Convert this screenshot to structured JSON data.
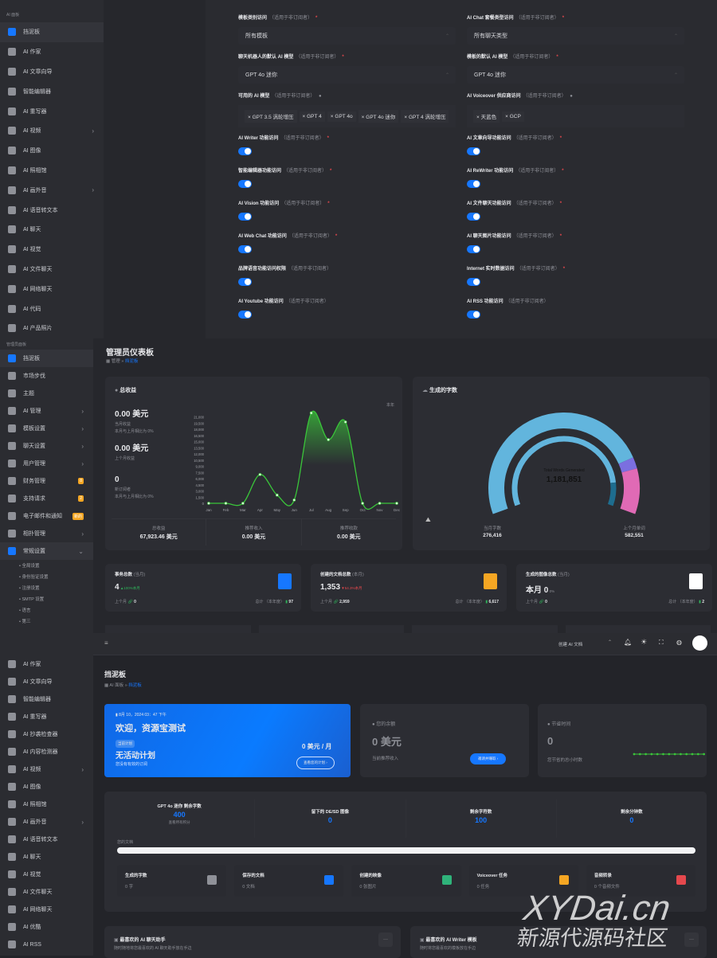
{
  "panel1": {
    "sidebar": {
      "section": "AI 面板",
      "items": [
        {
          "label": "挡泥板",
          "icon": "dashboard-icon",
          "active": true
        },
        {
          "label": "AI 作家",
          "icon": "ai-writer-icon"
        },
        {
          "label": "AI 文章向导",
          "icon": "sparkle-icon"
        },
        {
          "label": "智能编辑器",
          "icon": "feather-icon"
        },
        {
          "label": "AI 重写器",
          "icon": "pen-icon"
        },
        {
          "label": "AI 视频",
          "icon": "video-icon",
          "chevron": true
        },
        {
          "label": "AI 图像",
          "icon": "image-scan-icon"
        },
        {
          "label": "AI 照相馆",
          "icon": "photo-studio-icon"
        },
        {
          "label": "AI 画外音",
          "icon": "waveform-icon",
          "chevron": true
        },
        {
          "label": "AI 语音转文本",
          "icon": "speech-to-text-icon"
        },
        {
          "label": "AI 聊天",
          "icon": "chat-icon"
        },
        {
          "label": "AI 视觉",
          "icon": "vision-icon"
        },
        {
          "label": "AI 文件聊天",
          "icon": "file-chat-icon"
        },
        {
          "label": "AI 网络聊天",
          "icon": "globe-icon"
        },
        {
          "label": "AI 代码",
          "icon": "code-icon"
        },
        {
          "label": "AI 产品照片",
          "icon": "camera-icon"
        }
      ]
    },
    "form": {
      "hint": "（适用于非订阅者）",
      "left": [
        {
          "label": "模板类别访问",
          "type": "select",
          "value": "所有模板",
          "req": true
        },
        {
          "label": "聊天机器人的默认 AI 模型",
          "type": "select",
          "value": "GPT 4o 迷你",
          "req": true
        },
        {
          "label": "可用的 AI 模型",
          "type": "tags",
          "tags": [
            "GPT 3.5 涡轮增压",
            "GPT 4",
            "GPT 4o",
            "GPT 4o 迷你",
            "GPT 4 涡轮增压"
          ],
          "info": true
        },
        {
          "label": "AI Writer 功能访问",
          "type": "toggle",
          "on": true,
          "req": true
        },
        {
          "label": "智能编辑器功能访问",
          "type": "toggle",
          "on": true,
          "req": true
        },
        {
          "label": "AI Vision 功能访问",
          "type": "toggle",
          "on": true,
          "req": true
        },
        {
          "label": "AI Web Chat 功能访问",
          "type": "toggle",
          "on": true,
          "req": true
        },
        {
          "label": "品牌语音功能访问权限",
          "type": "toggle",
          "on": true
        },
        {
          "label": "AI Youtube 功能访问",
          "type": "toggle",
          "on": true
        }
      ],
      "right": [
        {
          "label": "AI Chat 套餐类型访问",
          "type": "select",
          "value": "所有聊天类型",
          "req": true
        },
        {
          "label": "模板的默认 AI 模型",
          "type": "select",
          "value": "GPT 4o 迷你",
          "req": true
        },
        {
          "label": "AI Voiceover 供应商访问",
          "type": "tags",
          "tags": [
            "天蓝色",
            "GCP"
          ],
          "info": true
        },
        {
          "label": "AI 文章向导功能访问",
          "type": "toggle",
          "on": true,
          "req": true
        },
        {
          "label": "AI ReWriter 功能访问",
          "type": "toggle",
          "on": true,
          "req": true
        },
        {
          "label": "AI 文件聊天功能访问",
          "type": "toggle",
          "on": true,
          "req": true
        },
        {
          "label": "AI 聊天图片功能访问",
          "type": "toggle",
          "on": true,
          "req": true
        },
        {
          "label": "Internet 实时数据访问",
          "type": "toggle",
          "on": true,
          "req": true
        },
        {
          "label": "AI RSS 功能访问",
          "type": "toggle",
          "on": true
        }
      ]
    }
  },
  "panel2": {
    "sidebar": {
      "section": "管理员面板",
      "items": [
        {
          "label": "挡泥板",
          "icon": "dashboard-icon",
          "active": true
        },
        {
          "label": "市场步伐",
          "icon": "marketplace-icon"
        },
        {
          "label": "主题",
          "icon": "palette-icon"
        },
        {
          "label": "AI 管理",
          "icon": "ai-manage-icon",
          "chevron": true
        },
        {
          "label": "模板设置",
          "icon": "feather-icon",
          "chevron": true
        },
        {
          "label": "聊天设置",
          "icon": "chat-settings-icon",
          "chevron": true
        },
        {
          "label": "用户管理",
          "icon": "user-icon",
          "chevron": true
        },
        {
          "label": "财务管理",
          "icon": "money-bag-icon",
          "badge": "8"
        },
        {
          "label": "支持请求",
          "icon": "support-icon",
          "badge": "2"
        },
        {
          "label": "电子邮件和通知",
          "icon": "mail-icon",
          "badge": "新的"
        },
        {
          "label": "相扑管理",
          "icon": "affiliate-icon",
          "chevron": true
        },
        {
          "label": "常规设置",
          "icon": "settings-icon",
          "active": true,
          "expanded": true
        }
      ],
      "subitems": [
        "全局设置",
        "身份验证设置",
        "注册设置",
        "SMTP 设置",
        "语言",
        "第三"
      ]
    },
    "title": "管理员仪表板",
    "breadcrumb": [
      "管理",
      "挡泥板"
    ],
    "revenue": {
      "title": "总收益",
      "stats": [
        {
          "value": "0.00 美元",
          "label": "当月收益",
          "sub": "本月与上月相比为 0%"
        },
        {
          "value": "0.00 美元",
          "label": "上个月收益"
        },
        {
          "value": "0",
          "label": "新订阅者",
          "sub": "本月与上月相比为 0%"
        }
      ],
      "range": "本年",
      "footer": [
        {
          "label": "总收益",
          "value": "67,923.46 美元"
        },
        {
          "label": "推荐收入",
          "value": "0.00 美元"
        },
        {
          "label": "推荐收款",
          "value": "0.00 美元"
        }
      ]
    },
    "words": {
      "title": "生成的字数",
      "center_label": "Total Words Generated",
      "center_value": "1,181,851",
      "left_label": "当月字数",
      "left_value": "276,416",
      "right_label": "上个月单词",
      "right_value": "582,551"
    },
    "stat_cards": [
      {
        "title": "事务总数",
        "period": "(当月)",
        "value": "4",
        "delta": "▲100%本月",
        "delta_color": "#2fb35a",
        "prev_label": "上个月",
        "prev": "0",
        "total_label": "总计 （本年度）",
        "total": "97",
        "icon": "invoice-dollar-icon",
        "color": "#1677ff"
      },
      {
        "title": "创建的文档总数",
        "period": "(本月)",
        "value": "1,353",
        "delta": "▼54.3%本月",
        "delta_color": "#e5484d",
        "prev_label": "上个月",
        "prev": "2,959",
        "total_label": "总计 （本年度）",
        "total": "6,617",
        "icon": "folder-icon",
        "color": "#f5a623"
      },
      {
        "title": "生成的图像总数",
        "period": "(当月)",
        "value": "本月 0",
        "delta": "0%",
        "delta_color": "#8d8f96",
        "prev_label": "上个月",
        "prev": "0",
        "total_label": "总计 （本年度）",
        "total": "2",
        "icon": "image-icon",
        "color": "#ffffff"
      }
    ]
  },
  "chart_data": [
    {
      "type": "area",
      "title": "",
      "x": [
        "Jan",
        "Feb",
        "Mar",
        "Apr",
        "May",
        "Jun",
        "Jul",
        "Aug",
        "Sep",
        "Oct",
        "Nov",
        "Dec"
      ],
      "values": [
        0,
        0,
        0,
        7000,
        2000,
        800,
        22000,
        15500,
        19800,
        0,
        0,
        0
      ],
      "yticks": [
        0,
        1500,
        3000,
        4500,
        6000,
        7500,
        9000,
        10500,
        12000,
        13500,
        15000,
        16500,
        18000,
        19500,
        21000
      ],
      "ytick_labels": [
        "0",
        "1,500",
        "3,000",
        "4,500",
        "6,000",
        "7,500",
        "9,000",
        "10,500",
        "12,000",
        "13,500",
        "15,000",
        "16,500",
        "18,000",
        "19,500",
        "21,000"
      ],
      "ylim": [
        0,
        22500
      ],
      "color": "#3ac53a",
      "grid": false
    },
    {
      "type": "radial-gauge",
      "outer": [
        {
          "fraction": 0.8,
          "color": "#62b5dd"
        },
        {
          "fraction": 0.04,
          "color": "#7b6fe0"
        },
        {
          "fraction": 0.16,
          "color": "#e06ab5"
        }
      ],
      "inner": [
        {
          "fraction": 0.88,
          "color": "#62b5dd"
        },
        {
          "fraction": 0.12,
          "color": "#1e6d8f"
        }
      ]
    }
  ],
  "panel3": {
    "sidebar": {
      "items": [
        {
          "label": "AI 作家",
          "icon": "ai-writer-icon"
        },
        {
          "label": "AI 文章向导",
          "icon": "sparkle-icon"
        },
        {
          "label": "智能编辑器",
          "icon": "feather-icon"
        },
        {
          "label": "AI 重写器",
          "icon": "pen-icon"
        },
        {
          "label": "AI 抄袭检查器",
          "icon": "shield-check-icon"
        },
        {
          "label": "AI 内容检测器",
          "icon": "detector-icon"
        },
        {
          "label": "AI 视频",
          "icon": "video-icon",
          "chevron": true
        },
        {
          "label": "AI 图像",
          "icon": "image-scan-icon"
        },
        {
          "label": "AI 照相馆",
          "icon": "photo-studio-icon"
        },
        {
          "label": "AI 画外音",
          "icon": "waveform-icon",
          "chevron": true
        },
        {
          "label": "AI 语音转文本",
          "icon": "speech-to-text-icon"
        },
        {
          "label": "AI 聊天",
          "icon": "chat-icon"
        },
        {
          "label": "AI 视觉",
          "icon": "vision-icon"
        },
        {
          "label": "AI 文件聊天",
          "icon": "file-chat-icon"
        },
        {
          "label": "AI 网络聊天",
          "icon": "globe-icon"
        },
        {
          "label": "AI 优酷",
          "icon": "youtube-icon"
        },
        {
          "label": "AI RSS",
          "icon": "rss-icon"
        }
      ]
    },
    "topbar": {
      "create_label": "创建 AI 文档"
    },
    "title": "挡泥板",
    "breadcrumb": [
      "AI 面板",
      "挡泥板"
    ],
    "welcome": {
      "date": "8月 10，2024 03：47 下午",
      "greeting": "欢迎，资源宝测试",
      "plan_badge": "当前计划",
      "plan": "无活动计划",
      "plan_sub": "您没有有效的订阅",
      "price": "0 美元 / 月",
      "button": "查看您的计划 ›"
    },
    "balance": {
      "title": "您的余额",
      "value": "0 美元",
      "label": "当前推荐收入",
      "button": "邀请并赚取 ›"
    },
    "saved": {
      "title": "节省时间",
      "value": "0",
      "label": "您节省的总小时数"
    },
    "credits": [
      {
        "label": "GPT 4o 迷你 剩余字数",
        "value": "400",
        "sub": "查看所有积分"
      },
      {
        "label": "留下的 DE/SD 图像",
        "value": "0"
      },
      {
        "label": "剩余字符数",
        "value": "100"
      },
      {
        "label": "剩余分钟数",
        "value": "0"
      }
    ],
    "docs_label": "您的文档",
    "docs_progress": 1.0,
    "mini": [
      {
        "title": "生成的字数",
        "value": "0 字",
        "icon": "ai-chip-icon",
        "color": "#8f9198"
      },
      {
        "title": "保存的文档",
        "value": "0 文档",
        "icon": "folder-icon",
        "color": "#1677ff"
      },
      {
        "title": "创建的映像",
        "value": "0 张图片",
        "icon": "image-icon",
        "color": "#2fb37a"
      },
      {
        "title": "Voiceover 任务",
        "value": "0 任务",
        "icon": "waveform-icon",
        "color": "#f5a623"
      },
      {
        "title": "音频转录",
        "value": "0 个音频文件",
        "icon": "music-folder-icon",
        "color": "#e5484d"
      }
    ],
    "favorites": [
      {
        "title": "最喜欢的 AI 聊天助手",
        "sub": "随时随地将您最喜欢的 AI 聊天助手放在手边"
      },
      {
        "title": "最喜欢的 AI Writer 模板",
        "sub": "随时将您最喜欢的模板放在手边"
      }
    ],
    "watermark": {
      "line1": "XYDai.cn",
      "line2": "新源代源码社区"
    }
  }
}
